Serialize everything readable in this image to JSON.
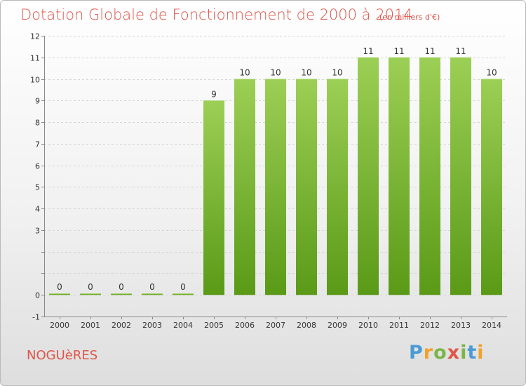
{
  "title": "Dotation Globale de Fonctionnement de 2000 à 2014",
  "subtitle": "(en milliers d'€)",
  "commune": "NOGUèRES",
  "brand": {
    "letters": [
      "P",
      "r",
      "o",
      "x",
      "i",
      "t",
      "i"
    ],
    "colors": [
      "#4b9ad6",
      "#f0a22c",
      "#7ab648",
      "#e0554a",
      "#7ab648",
      "#4b9ad6",
      "#f0a22c"
    ]
  },
  "colors": {
    "bar_top": "#9ccf55",
    "bar_bottom": "#5a9a17",
    "title": "#e0554a",
    "axis_text": "#333333",
    "grid": "#d5d5d5"
  },
  "chart_data": {
    "type": "bar",
    "categories": [
      "2000",
      "2001",
      "2002",
      "2003",
      "2004",
      "2005",
      "2006",
      "2007",
      "2008",
      "2009",
      "2010",
      "2011",
      "2012",
      "2013",
      "2014"
    ],
    "values": [
      0,
      0,
      0,
      0,
      0,
      9,
      10,
      10,
      10,
      10,
      11,
      11,
      11,
      11,
      10
    ],
    "ylim": [
      -1,
      12
    ],
    "yticks": [
      -1,
      0,
      1,
      2,
      3,
      4,
      5,
      6,
      7,
      8,
      9,
      10,
      11,
      12
    ],
    "ytick_labels": [
      "-1",
      "0",
      "",
      "",
      "3",
      "4",
      "5",
      "6",
      "7",
      "8",
      "9",
      "10",
      "11",
      "12"
    ],
    "grid": true,
    "title": "Dotation Globale de Fonctionnement de 2000 à 2014",
    "xlabel": "",
    "ylabel": ""
  }
}
